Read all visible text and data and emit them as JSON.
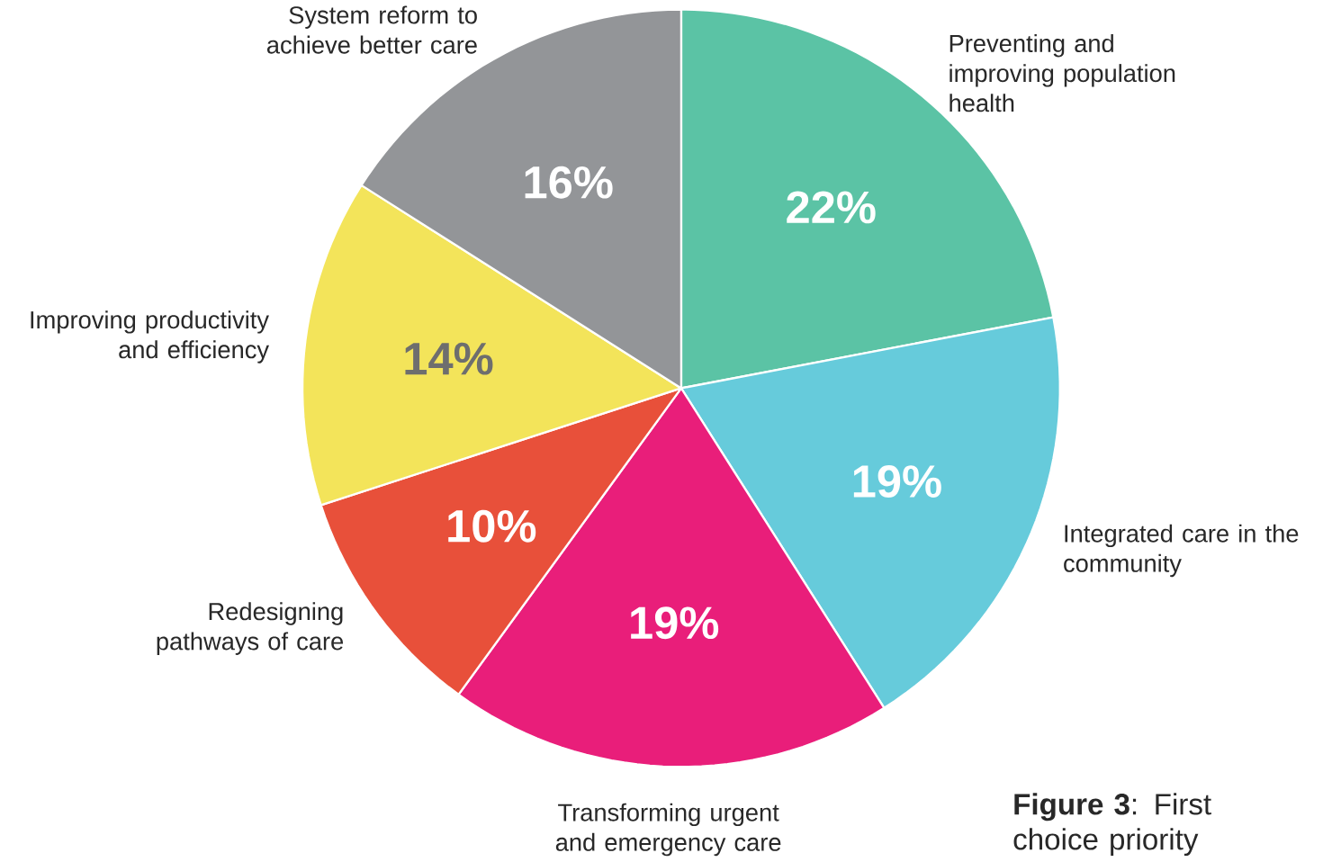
{
  "chart_data": {
    "type": "pie",
    "categories": [
      "Preventing and improving population health",
      "Integrated care in the community",
      "Transforming urgent and emergency care",
      "Redesigning pathways of care",
      "Improving productivity and efficiency",
      "System reform to achieve better care"
    ],
    "values": [
      22,
      19,
      19,
      10,
      14,
      16
    ],
    "colors": [
      "#5bc3a5",
      "#66cbdb",
      "#e91e7a",
      "#e8503a",
      "#f3e45a",
      "#939598"
    ],
    "value_labels": [
      "22%",
      "19%",
      "19%",
      "10%",
      "14%",
      "16%"
    ],
    "annotations": [
      "**Figure 3**: First choice priority"
    ]
  }
}
